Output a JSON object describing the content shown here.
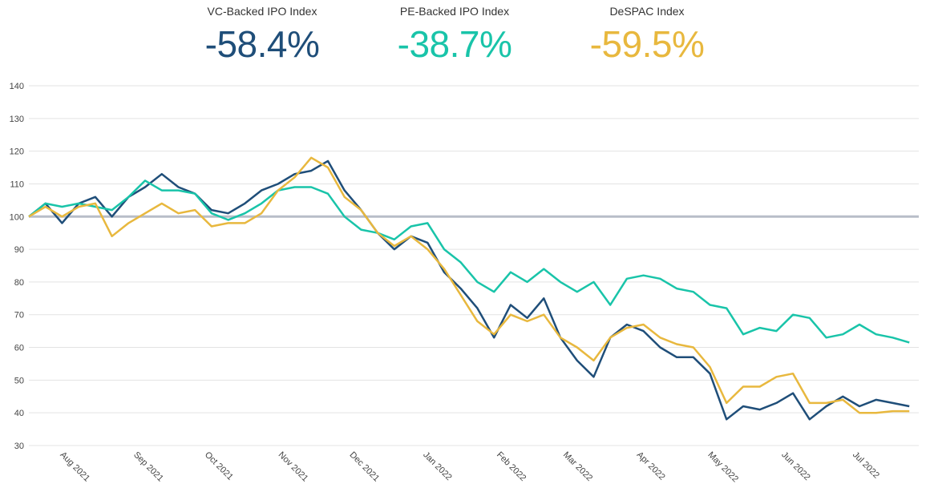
{
  "kpis": [
    {
      "label": "VC-Backed IPO Index",
      "value": "-58.4%",
      "color": "#1f4e79"
    },
    {
      "label": "PE-Backed IPO Index",
      "value": "-38.7%",
      "color": "#19c4a9"
    },
    {
      "label": "DeSPAC Index",
      "value": "-59.5%",
      "color": "#e8b83e"
    }
  ],
  "chart_data": {
    "type": "line",
    "ylim": [
      30,
      140
    ],
    "yticks": [
      30,
      40,
      50,
      60,
      70,
      80,
      90,
      100,
      110,
      120,
      130,
      140
    ],
    "xlim": [
      "2021-07-19",
      "2022-07-29"
    ],
    "xticks": [
      {
        "label": "Aug 2021",
        "date": "2021-08-01"
      },
      {
        "label": "Sep 2021",
        "date": "2021-09-01"
      },
      {
        "label": "Oct 2021",
        "date": "2021-10-01"
      },
      {
        "label": "Nov 2021",
        "date": "2021-11-01"
      },
      {
        "label": "Dec 2021",
        "date": "2021-12-01"
      },
      {
        "label": "Jan 2022",
        "date": "2022-01-01"
      },
      {
        "label": "Feb 2022",
        "date": "2022-02-01"
      },
      {
        "label": "Mar 2022",
        "date": "2022-03-01"
      },
      {
        "label": "Apr 2022",
        "date": "2022-04-01"
      },
      {
        "label": "May 2022",
        "date": "2022-05-01"
      },
      {
        "label": "Jun 2022",
        "date": "2022-06-01"
      },
      {
        "label": "Jul 2022",
        "date": "2022-07-01"
      }
    ],
    "reference_line": 100,
    "grid": true,
    "series": [
      {
        "name": "VC-Backed IPO Index",
        "color": "#1f4e79",
        "points": [
          [
            "2021-07-19",
            100
          ],
          [
            "2021-07-26",
            104
          ],
          [
            "2021-08-02",
            98
          ],
          [
            "2021-08-09",
            104
          ],
          [
            "2021-08-16",
            106
          ],
          [
            "2021-08-23",
            100
          ],
          [
            "2021-08-30",
            106
          ],
          [
            "2021-09-06",
            109
          ],
          [
            "2021-09-13",
            113
          ],
          [
            "2021-09-20",
            109
          ],
          [
            "2021-09-27",
            107
          ],
          [
            "2021-10-04",
            102
          ],
          [
            "2021-10-11",
            101
          ],
          [
            "2021-10-18",
            104
          ],
          [
            "2021-10-25",
            108
          ],
          [
            "2021-11-01",
            110
          ],
          [
            "2021-11-08",
            113
          ],
          [
            "2021-11-15",
            114
          ],
          [
            "2021-11-22",
            117
          ],
          [
            "2021-11-29",
            108
          ],
          [
            "2021-12-06",
            102
          ],
          [
            "2021-12-13",
            95
          ],
          [
            "2021-12-20",
            90
          ],
          [
            "2021-12-27",
            94
          ],
          [
            "2022-01-03",
            92
          ],
          [
            "2022-01-10",
            83
          ],
          [
            "2022-01-17",
            78
          ],
          [
            "2022-01-24",
            72
          ],
          [
            "2022-01-31",
            63
          ],
          [
            "2022-02-07",
            73
          ],
          [
            "2022-02-14",
            69
          ],
          [
            "2022-02-21",
            75
          ],
          [
            "2022-02-28",
            63
          ],
          [
            "2022-03-07",
            56
          ],
          [
            "2022-03-14",
            51
          ],
          [
            "2022-03-21",
            63
          ],
          [
            "2022-03-28",
            67
          ],
          [
            "2022-04-04",
            65
          ],
          [
            "2022-04-11",
            60
          ],
          [
            "2022-04-18",
            57
          ],
          [
            "2022-04-25",
            57
          ],
          [
            "2022-05-02",
            52
          ],
          [
            "2022-05-09",
            38
          ],
          [
            "2022-05-16",
            42
          ],
          [
            "2022-05-23",
            41
          ],
          [
            "2022-05-30",
            43
          ],
          [
            "2022-06-06",
            46
          ],
          [
            "2022-06-13",
            38
          ],
          [
            "2022-06-20",
            42
          ],
          [
            "2022-06-27",
            45
          ],
          [
            "2022-07-04",
            42
          ],
          [
            "2022-07-11",
            44
          ],
          [
            "2022-07-18",
            43
          ],
          [
            "2022-07-25",
            42
          ]
        ]
      },
      {
        "name": "PE-Backed IPO Index",
        "color": "#19c4a9",
        "points": [
          [
            "2021-07-19",
            100
          ],
          [
            "2021-07-26",
            104
          ],
          [
            "2021-08-02",
            103
          ],
          [
            "2021-08-09",
            104
          ],
          [
            "2021-08-16",
            103
          ],
          [
            "2021-08-23",
            102
          ],
          [
            "2021-08-30",
            106
          ],
          [
            "2021-09-06",
            111
          ],
          [
            "2021-09-13",
            108
          ],
          [
            "2021-09-20",
            108
          ],
          [
            "2021-09-27",
            107
          ],
          [
            "2021-10-04",
            101
          ],
          [
            "2021-10-11",
            99
          ],
          [
            "2021-10-18",
            101
          ],
          [
            "2021-10-25",
            104
          ],
          [
            "2021-11-01",
            108
          ],
          [
            "2021-11-08",
            109
          ],
          [
            "2021-11-15",
            109
          ],
          [
            "2021-11-22",
            107
          ],
          [
            "2021-11-29",
            100
          ],
          [
            "2021-12-06",
            96
          ],
          [
            "2021-12-13",
            95
          ],
          [
            "2021-12-20",
            93
          ],
          [
            "2021-12-27",
            97
          ],
          [
            "2022-01-03",
            98
          ],
          [
            "2022-01-10",
            90
          ],
          [
            "2022-01-17",
            86
          ],
          [
            "2022-01-24",
            80
          ],
          [
            "2022-01-31",
            77
          ],
          [
            "2022-02-07",
            83
          ],
          [
            "2022-02-14",
            80
          ],
          [
            "2022-02-21",
            84
          ],
          [
            "2022-02-28",
            80
          ],
          [
            "2022-03-07",
            77
          ],
          [
            "2022-03-14",
            80
          ],
          [
            "2022-03-21",
            73
          ],
          [
            "2022-03-28",
            81
          ],
          [
            "2022-04-04",
            82
          ],
          [
            "2022-04-11",
            81
          ],
          [
            "2022-04-18",
            78
          ],
          [
            "2022-04-25",
            77
          ],
          [
            "2022-05-02",
            73
          ],
          [
            "2022-05-09",
            72
          ],
          [
            "2022-05-16",
            64
          ],
          [
            "2022-05-23",
            66
          ],
          [
            "2022-05-30",
            65
          ],
          [
            "2022-06-06",
            70
          ],
          [
            "2022-06-13",
            69
          ],
          [
            "2022-06-20",
            63
          ],
          [
            "2022-06-27",
            64
          ],
          [
            "2022-07-04",
            67
          ],
          [
            "2022-07-11",
            64
          ],
          [
            "2022-07-18",
            63
          ],
          [
            "2022-07-25",
            61.5
          ]
        ]
      },
      {
        "name": "DeSPAC Index",
        "color": "#e8b83e",
        "points": [
          [
            "2021-07-19",
            100
          ],
          [
            "2021-07-26",
            103
          ],
          [
            "2021-08-02",
            100
          ],
          [
            "2021-08-09",
            103
          ],
          [
            "2021-08-16",
            104
          ],
          [
            "2021-08-23",
            94
          ],
          [
            "2021-08-30",
            98
          ],
          [
            "2021-09-06",
            101
          ],
          [
            "2021-09-13",
            104
          ],
          [
            "2021-09-20",
            101
          ],
          [
            "2021-09-27",
            102
          ],
          [
            "2021-10-04",
            97
          ],
          [
            "2021-10-11",
            98
          ],
          [
            "2021-10-18",
            98
          ],
          [
            "2021-10-25",
            101
          ],
          [
            "2021-11-01",
            108
          ],
          [
            "2021-11-08",
            112
          ],
          [
            "2021-11-15",
            118
          ],
          [
            "2021-11-22",
            115
          ],
          [
            "2021-11-29",
            106
          ],
          [
            "2021-12-06",
            102
          ],
          [
            "2021-12-13",
            95
          ],
          [
            "2021-12-20",
            91
          ],
          [
            "2021-12-27",
            94
          ],
          [
            "2022-01-03",
            90
          ],
          [
            "2022-01-10",
            84
          ],
          [
            "2022-01-17",
            76
          ],
          [
            "2022-01-24",
            68
          ],
          [
            "2022-01-31",
            64
          ],
          [
            "2022-02-07",
            70
          ],
          [
            "2022-02-14",
            68
          ],
          [
            "2022-02-21",
            70
          ],
          [
            "2022-02-28",
            63
          ],
          [
            "2022-03-07",
            60
          ],
          [
            "2022-03-14",
            56
          ],
          [
            "2022-03-21",
            63
          ],
          [
            "2022-03-28",
            66
          ],
          [
            "2022-04-04",
            67
          ],
          [
            "2022-04-11",
            63
          ],
          [
            "2022-04-18",
            61
          ],
          [
            "2022-04-25",
            60
          ],
          [
            "2022-05-02",
            54
          ],
          [
            "2022-05-09",
            43
          ],
          [
            "2022-05-16",
            48
          ],
          [
            "2022-05-23",
            48
          ],
          [
            "2022-05-30",
            51
          ],
          [
            "2022-06-06",
            52
          ],
          [
            "2022-06-13",
            43
          ],
          [
            "2022-06-20",
            43
          ],
          [
            "2022-06-27",
            44
          ],
          [
            "2022-07-04",
            40
          ],
          [
            "2022-07-11",
            40
          ],
          [
            "2022-07-18",
            40.5
          ],
          [
            "2022-07-25",
            40.5
          ]
        ]
      }
    ]
  }
}
